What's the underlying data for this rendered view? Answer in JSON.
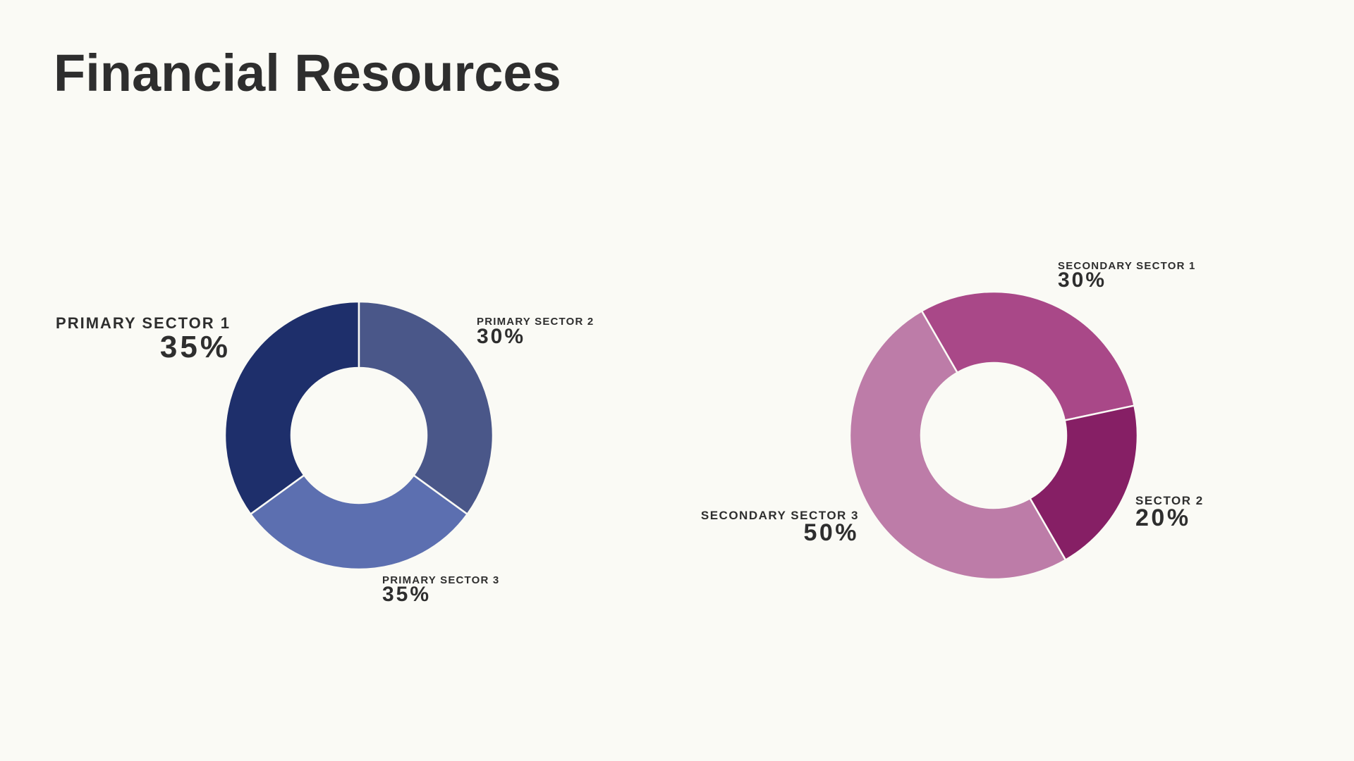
{
  "title": "Financial Resources",
  "chart_data": [
    {
      "type": "pie",
      "categories": [
        "PRIMARY SECTOR 1",
        "PRIMARY SECTOR 2",
        "PRIMARY SECTOR 3"
      ],
      "values": [
        35,
        30,
        35
      ],
      "value_labels": [
        "35%",
        "30%",
        "35%"
      ],
      "colors": [
        "#1e2f6b",
        "#5c6fb0",
        "#4a5789"
      ]
    },
    {
      "type": "pie",
      "categories": [
        "SECONDARY SECTOR 1",
        "SECTOR 2",
        "SECONDARY SECTOR 3"
      ],
      "values": [
        30,
        20,
        50
      ],
      "value_labels": [
        "30%",
        "20%",
        "50%"
      ],
      "colors": [
        "#a94888",
        "#861f65",
        "#bd7ca8"
      ]
    }
  ]
}
